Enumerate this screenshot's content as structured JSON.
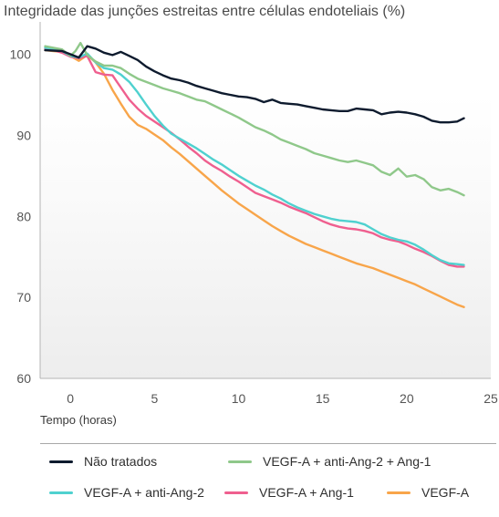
{
  "chart_data": {
    "type": "line",
    "title": "Integridade das junções estreitas entre células endoteliais (%)",
    "xlabel": "Tempo (horas)",
    "ylabel": "",
    "xlim": [
      -1.8,
      25
    ],
    "ylim": [
      60,
      104
    ],
    "xticks": [
      0,
      5,
      10,
      15,
      20,
      25
    ],
    "yticks": [
      60,
      70,
      80,
      90,
      100
    ],
    "grid": "gradient band",
    "legend_position": "bottom",
    "series": [
      {
        "name": "Não tratados",
        "color": "#0e1b2e",
        "points": [
          [
            -1.5,
            100.5
          ],
          [
            -0.5,
            100.4
          ],
          [
            0.0,
            100.0
          ],
          [
            0.5,
            99.6
          ],
          [
            1.0,
            101.0
          ],
          [
            1.5,
            100.7
          ],
          [
            2.0,
            100.2
          ],
          [
            2.5,
            99.9
          ],
          [
            3.0,
            100.3
          ],
          [
            3.5,
            99.8
          ],
          [
            4.0,
            99.3
          ],
          [
            4.5,
            98.5
          ],
          [
            5.0,
            97.9
          ],
          [
            5.5,
            97.4
          ],
          [
            6.0,
            97.0
          ],
          [
            6.5,
            96.8
          ],
          [
            7.0,
            96.5
          ],
          [
            7.5,
            96.1
          ],
          [
            8.0,
            95.8
          ],
          [
            8.5,
            95.5
          ],
          [
            9.0,
            95.2
          ],
          [
            9.5,
            95.0
          ],
          [
            10.0,
            94.8
          ],
          [
            10.5,
            94.7
          ],
          [
            11.0,
            94.5
          ],
          [
            11.5,
            94.1
          ],
          [
            12.0,
            94.4
          ],
          [
            12.5,
            94.0
          ],
          [
            13.0,
            93.9
          ],
          [
            13.5,
            93.8
          ],
          [
            14.0,
            93.6
          ],
          [
            14.5,
            93.4
          ],
          [
            15.0,
            93.2
          ],
          [
            15.5,
            93.1
          ],
          [
            16.0,
            93.0
          ],
          [
            16.5,
            93.0
          ],
          [
            17.0,
            93.3
          ],
          [
            17.5,
            93.2
          ],
          [
            18.0,
            93.1
          ],
          [
            18.5,
            92.6
          ],
          [
            19.0,
            92.8
          ],
          [
            19.5,
            92.9
          ],
          [
            20.0,
            92.8
          ],
          [
            20.5,
            92.6
          ],
          [
            21.0,
            92.3
          ],
          [
            21.5,
            91.8
          ],
          [
            22.0,
            91.6
          ],
          [
            22.5,
            91.6
          ],
          [
            23.0,
            91.7
          ],
          [
            23.4,
            92.1
          ]
        ]
      },
      {
        "name": "VEGF-A + anti-Ang-2 + Ang-1",
        "color": "#8fc88a",
        "points": [
          [
            -1.5,
            101.0
          ],
          [
            -1.0,
            100.8
          ],
          [
            -0.5,
            100.6
          ],
          [
            0.0,
            99.8
          ],
          [
            0.3,
            100.4
          ],
          [
            0.6,
            101.4
          ],
          [
            1.0,
            99.9
          ],
          [
            1.5,
            99.1
          ],
          [
            2.0,
            98.6
          ],
          [
            2.5,
            98.6
          ],
          [
            3.0,
            98.3
          ],
          [
            3.5,
            97.6
          ],
          [
            4.0,
            97.0
          ],
          [
            4.5,
            96.6
          ],
          [
            5.0,
            96.2
          ],
          [
            5.5,
            95.8
          ],
          [
            6.0,
            95.5
          ],
          [
            6.5,
            95.2
          ],
          [
            7.0,
            94.8
          ],
          [
            7.5,
            94.4
          ],
          [
            8.0,
            94.2
          ],
          [
            8.5,
            93.7
          ],
          [
            9.0,
            93.2
          ],
          [
            9.5,
            92.7
          ],
          [
            10.0,
            92.2
          ],
          [
            10.5,
            91.6
          ],
          [
            11.0,
            91.0
          ],
          [
            11.5,
            90.6
          ],
          [
            12.0,
            90.1
          ],
          [
            12.5,
            89.5
          ],
          [
            13.0,
            89.1
          ],
          [
            13.5,
            88.7
          ],
          [
            14.0,
            88.3
          ],
          [
            14.5,
            87.8
          ],
          [
            15.0,
            87.5
          ],
          [
            15.5,
            87.2
          ],
          [
            16.0,
            86.9
          ],
          [
            16.5,
            86.7
          ],
          [
            17.0,
            86.9
          ],
          [
            17.5,
            86.6
          ],
          [
            18.0,
            86.3
          ],
          [
            18.5,
            85.5
          ],
          [
            19.0,
            85.1
          ],
          [
            19.5,
            85.9
          ],
          [
            20.0,
            84.9
          ],
          [
            20.5,
            85.1
          ],
          [
            21.0,
            84.6
          ],
          [
            21.5,
            83.6
          ],
          [
            22.0,
            83.2
          ],
          [
            22.5,
            83.4
          ],
          [
            23.0,
            83.0
          ],
          [
            23.4,
            82.6
          ]
        ]
      },
      {
        "name": "VEGF-A + anti-Ang-2",
        "color": "#4fd1cf",
        "points": [
          [
            -1.5,
            100.8
          ],
          [
            -1.0,
            100.7
          ],
          [
            -0.5,
            100.4
          ],
          [
            0.0,
            99.8
          ],
          [
            0.5,
            99.6
          ],
          [
            1.0,
            100.1
          ],
          [
            1.5,
            99.0
          ],
          [
            2.0,
            98.3
          ],
          [
            2.5,
            98.1
          ],
          [
            3.0,
            97.5
          ],
          [
            3.5,
            96.6
          ],
          [
            4.0,
            95.3
          ],
          [
            4.5,
            93.8
          ],
          [
            5.0,
            92.4
          ],
          [
            5.5,
            91.2
          ],
          [
            6.0,
            90.2
          ],
          [
            6.5,
            89.6
          ],
          [
            7.0,
            89.0
          ],
          [
            7.5,
            88.4
          ],
          [
            8.0,
            87.7
          ],
          [
            8.5,
            87.0
          ],
          [
            9.0,
            86.4
          ],
          [
            9.5,
            85.7
          ],
          [
            10.0,
            85.0
          ],
          [
            10.5,
            84.4
          ],
          [
            11.0,
            83.8
          ],
          [
            11.5,
            83.3
          ],
          [
            12.0,
            82.7
          ],
          [
            12.5,
            82.2
          ],
          [
            13.0,
            81.6
          ],
          [
            13.5,
            81.1
          ],
          [
            14.0,
            80.7
          ],
          [
            14.5,
            80.3
          ],
          [
            15.0,
            80.0
          ],
          [
            15.5,
            79.7
          ],
          [
            16.0,
            79.5
          ],
          [
            16.5,
            79.4
          ],
          [
            17.0,
            79.3
          ],
          [
            17.5,
            79.0
          ],
          [
            18.0,
            78.4
          ],
          [
            18.5,
            77.8
          ],
          [
            19.0,
            77.4
          ],
          [
            19.5,
            77.1
          ],
          [
            20.0,
            76.9
          ],
          [
            20.5,
            76.5
          ],
          [
            21.0,
            75.9
          ],
          [
            21.5,
            75.2
          ],
          [
            22.0,
            74.6
          ],
          [
            22.5,
            74.2
          ],
          [
            23.0,
            74.1
          ],
          [
            23.4,
            74.0
          ]
        ]
      },
      {
        "name": "VEGF-A + Ang-1",
        "color": "#ef5f8f",
        "points": [
          [
            -1.5,
            100.7
          ],
          [
            -1.0,
            100.5
          ],
          [
            -0.5,
            100.2
          ],
          [
            0.0,
            99.7
          ],
          [
            0.5,
            99.5
          ],
          [
            1.0,
            99.8
          ],
          [
            1.5,
            97.8
          ],
          [
            2.0,
            97.5
          ],
          [
            2.5,
            97.4
          ],
          [
            3.0,
            95.9
          ],
          [
            3.5,
            94.4
          ],
          [
            4.0,
            93.3
          ],
          [
            4.5,
            92.4
          ],
          [
            5.0,
            91.7
          ],
          [
            5.5,
            91.0
          ],
          [
            6.0,
            90.3
          ],
          [
            6.5,
            89.5
          ],
          [
            7.0,
            88.6
          ],
          [
            7.5,
            87.8
          ],
          [
            8.0,
            86.9
          ],
          [
            8.5,
            86.2
          ],
          [
            9.0,
            85.6
          ],
          [
            9.5,
            84.9
          ],
          [
            10.0,
            84.3
          ],
          [
            10.5,
            83.6
          ],
          [
            11.0,
            82.9
          ],
          [
            11.5,
            82.5
          ],
          [
            12.0,
            82.1
          ],
          [
            12.5,
            81.7
          ],
          [
            13.0,
            81.2
          ],
          [
            13.5,
            80.8
          ],
          [
            14.0,
            80.4
          ],
          [
            14.5,
            79.9
          ],
          [
            15.0,
            79.4
          ],
          [
            15.5,
            79.0
          ],
          [
            16.0,
            78.7
          ],
          [
            16.5,
            78.5
          ],
          [
            17.0,
            78.4
          ],
          [
            17.5,
            78.2
          ],
          [
            18.0,
            77.9
          ],
          [
            18.5,
            77.4
          ],
          [
            19.0,
            77.1
          ],
          [
            19.5,
            76.9
          ],
          [
            20.0,
            76.5
          ],
          [
            20.5,
            76.0
          ],
          [
            21.0,
            75.6
          ],
          [
            21.5,
            75.1
          ],
          [
            22.0,
            74.5
          ],
          [
            22.5,
            74.0
          ],
          [
            23.0,
            73.8
          ],
          [
            23.4,
            73.8
          ]
        ]
      },
      {
        "name": "VEGF-A",
        "color": "#f8a54a",
        "points": [
          [
            -1.5,
            100.5
          ],
          [
            -1.0,
            100.4
          ],
          [
            -0.5,
            100.3
          ],
          [
            0.0,
            99.8
          ],
          [
            0.5,
            99.2
          ],
          [
            1.0,
            99.9
          ],
          [
            1.5,
            99.0
          ],
          [
            2.0,
            97.6
          ],
          [
            2.5,
            95.6
          ],
          [
            3.0,
            93.9
          ],
          [
            3.5,
            92.3
          ],
          [
            4.0,
            91.3
          ],
          [
            4.5,
            90.8
          ],
          [
            5.0,
            90.1
          ],
          [
            5.5,
            89.4
          ],
          [
            6.0,
            88.5
          ],
          [
            6.5,
            87.7
          ],
          [
            7.0,
            86.8
          ],
          [
            7.5,
            85.9
          ],
          [
            8.0,
            85.0
          ],
          [
            8.5,
            84.1
          ],
          [
            9.0,
            83.2
          ],
          [
            9.5,
            82.4
          ],
          [
            10.0,
            81.6
          ],
          [
            10.5,
            80.9
          ],
          [
            11.0,
            80.2
          ],
          [
            11.5,
            79.5
          ],
          [
            12.0,
            78.8
          ],
          [
            12.5,
            78.2
          ],
          [
            13.0,
            77.6
          ],
          [
            13.5,
            77.1
          ],
          [
            14.0,
            76.6
          ],
          [
            14.5,
            76.2
          ],
          [
            15.0,
            75.8
          ],
          [
            15.5,
            75.4
          ],
          [
            16.0,
            75.0
          ],
          [
            16.5,
            74.6
          ],
          [
            17.0,
            74.2
          ],
          [
            17.5,
            73.9
          ],
          [
            18.0,
            73.6
          ],
          [
            18.5,
            73.2
          ],
          [
            19.0,
            72.8
          ],
          [
            19.5,
            72.4
          ],
          [
            20.0,
            72.0
          ],
          [
            20.5,
            71.6
          ],
          [
            21.0,
            71.1
          ],
          [
            21.5,
            70.6
          ],
          [
            22.0,
            70.1
          ],
          [
            22.5,
            69.6
          ],
          [
            23.0,
            69.1
          ],
          [
            23.4,
            68.8
          ]
        ]
      }
    ]
  }
}
